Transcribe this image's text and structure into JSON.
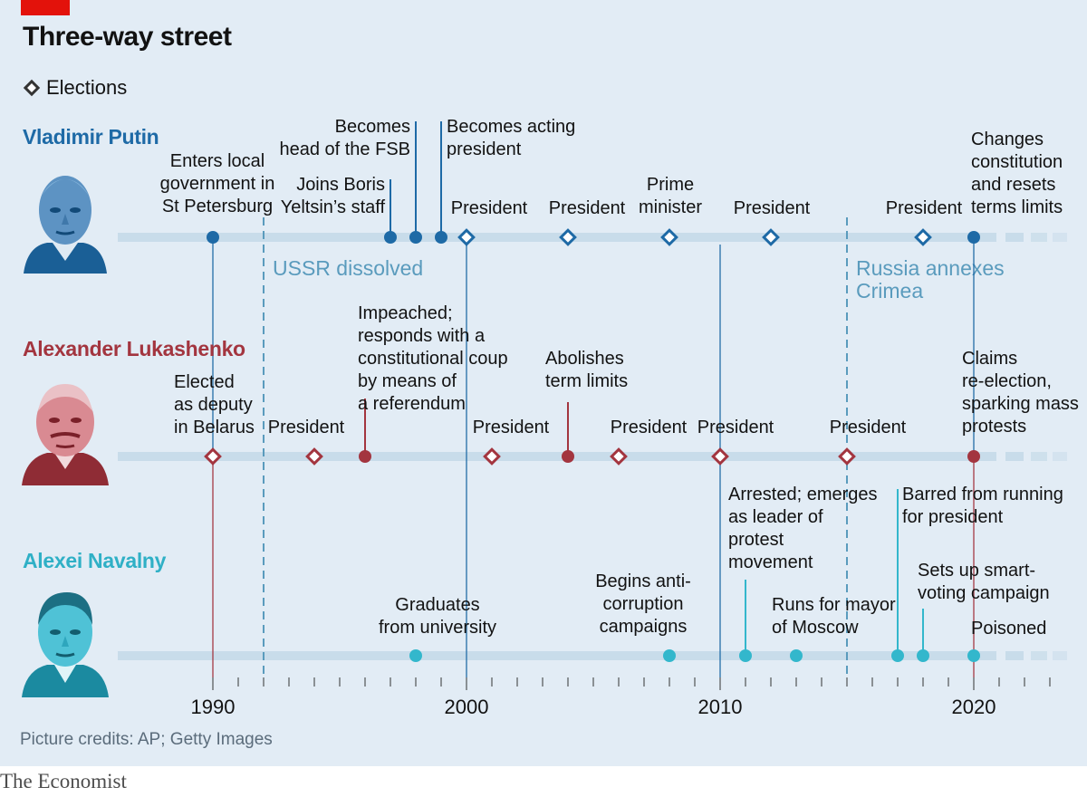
{
  "title": "Three-way street",
  "legend": {
    "label": "Elections",
    "icon": "diamond-marker-icon"
  },
  "credits": "Picture credits: AP; Getty Images",
  "brand": "The Economist",
  "colors": {
    "putin": "#1e6aa6",
    "lukashenko": "#a3353f",
    "navalny": "#33b7cc",
    "track": "#c8dcea",
    "background": "#e2ecf5",
    "context": "#5a9bbd",
    "axis": "#333333"
  },
  "people": [
    {
      "key": "putin",
      "name": "Vladimir Putin",
      "photo_icon": "putin-portrait-icon"
    },
    {
      "key": "lukashenko",
      "name": "Alexander Lukashenko",
      "photo_icon": "lukashenko-portrait-icon"
    },
    {
      "key": "navalny",
      "name": "Alexei Navalny",
      "photo_icon": "navalny-portrait-icon"
    }
  ],
  "chart_data": {
    "type": "timeline",
    "x_axis": {
      "range": [
        1989,
        2023
      ],
      "ticks": [
        1990,
        2000,
        2010,
        2020
      ]
    },
    "context_events": [
      {
        "year": 1991,
        "label": [
          "USSR dissolved"
        ]
      },
      {
        "year": 2014,
        "label": [
          "Russia annexes",
          "Crimea"
        ]
      }
    ],
    "series": [
      {
        "key": "putin",
        "name": "Vladimir Putin",
        "events": [
          {
            "year": 1990,
            "kind": "event",
            "label": [
              "Enters local",
              "government in",
              "St Petersburg"
            ]
          },
          {
            "year": 1997,
            "kind": "event",
            "label": [
              "Joins Boris",
              "Yeltsin’s staff"
            ]
          },
          {
            "year": 1998,
            "kind": "event",
            "label": [
              "Becomes",
              "head of the FSB"
            ]
          },
          {
            "year": 1999,
            "kind": "event",
            "label": [
              "Becomes acting",
              "president"
            ]
          },
          {
            "year": 2000,
            "kind": "election",
            "label": [
              "President"
            ]
          },
          {
            "year": 2004,
            "kind": "election",
            "label": [
              "President"
            ]
          },
          {
            "year": 2008,
            "kind": "election",
            "label": [
              "Prime",
              "minister"
            ]
          },
          {
            "year": 2012,
            "kind": "election",
            "label": [
              "President"
            ]
          },
          {
            "year": 2018,
            "kind": "election",
            "label": [
              "President"
            ]
          },
          {
            "year": 2020,
            "kind": "event",
            "label": [
              "Changes",
              "constitution",
              "and resets",
              "terms limits"
            ]
          }
        ]
      },
      {
        "key": "lukashenko",
        "name": "Alexander Lukashenko",
        "events": [
          {
            "year": 1990,
            "kind": "election",
            "label": [
              "Elected",
              "as deputy",
              "in Belarus"
            ]
          },
          {
            "year": 1994,
            "kind": "election",
            "label": [
              "President"
            ]
          },
          {
            "year": 1996,
            "kind": "event",
            "label": [
              "Impeached;",
              "responds with a",
              "constitutional coup",
              "by means of",
              "a referendum"
            ]
          },
          {
            "year": 2001,
            "kind": "election",
            "label": [
              "President"
            ]
          },
          {
            "year": 2004,
            "kind": "event",
            "label": [
              "Abolishes",
              "term limits"
            ]
          },
          {
            "year": 2006,
            "kind": "election",
            "label": [
              "President"
            ]
          },
          {
            "year": 2010,
            "kind": "election",
            "label": [
              "President"
            ]
          },
          {
            "year": 2015,
            "kind": "election",
            "label": [
              "President"
            ]
          },
          {
            "year": 2020,
            "kind": "event",
            "label": [
              "Claims",
              "re-election,",
              "sparking mass",
              "protests"
            ]
          }
        ]
      },
      {
        "key": "navalny",
        "name": "Alexei Navalny",
        "events": [
          {
            "year": 1998,
            "kind": "event",
            "label": [
              "Graduates",
              "from university"
            ]
          },
          {
            "year": 2008,
            "kind": "event",
            "label": [
              "Begins anti-",
              "corruption",
              "campaigns"
            ]
          },
          {
            "year": 2011,
            "kind": "event",
            "label": [
              "Arrested; emerges",
              "as leader of",
              "protest",
              "movement"
            ]
          },
          {
            "year": 2013,
            "kind": "event",
            "label": [
              "Runs for mayor",
              "of Moscow"
            ]
          },
          {
            "year": 2017,
            "kind": "event",
            "label": [
              "Barred from running",
              "for president"
            ]
          },
          {
            "year": 2018,
            "kind": "event",
            "label": [
              "Sets up smart-",
              "voting campaign"
            ]
          },
          {
            "year": 2020,
            "kind": "event",
            "label": [
              "Poisoned"
            ]
          }
        ]
      }
    ]
  }
}
